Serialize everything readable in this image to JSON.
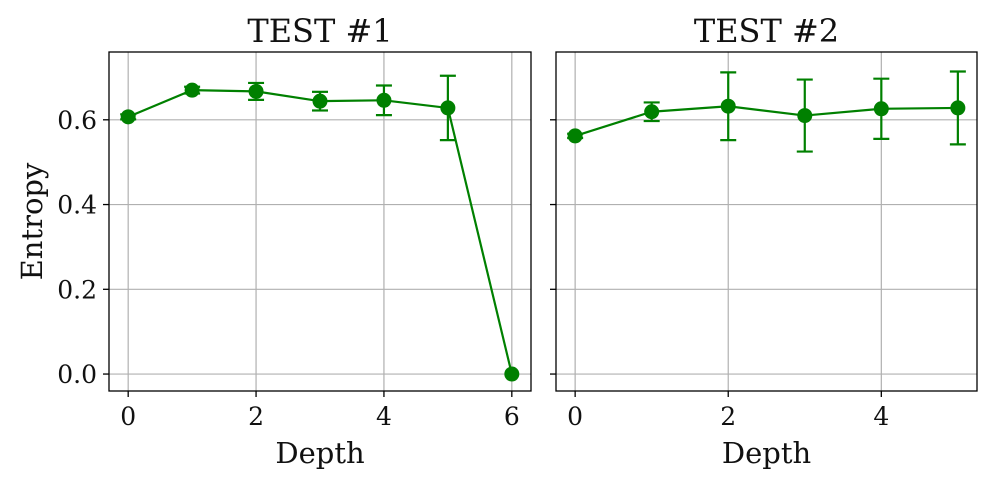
{
  "chart_data": [
    {
      "type": "line",
      "title": "TEST #1",
      "xlabel": "Depth",
      "ylabel": "Entropy",
      "xlim": [
        -0.3,
        6.3
      ],
      "ylim": [
        -0.04,
        0.76
      ],
      "xticks": [
        0,
        2,
        4,
        6
      ],
      "xtick_labels": [
        "0",
        "2",
        "4",
        "6"
      ],
      "yticks": [
        0.0,
        0.2,
        0.4,
        0.6
      ],
      "ytick_labels": [
        "0.0",
        "0.2",
        "0.4",
        "0.6"
      ],
      "grid": true,
      "color": "#008000",
      "series": [
        {
          "x": [
            0,
            1,
            2,
            3,
            4,
            5,
            6
          ],
          "y": [
            0.607,
            0.67,
            0.667,
            0.644,
            0.646,
            0.628,
            0.0
          ],
          "yerr": [
            0.006,
            0.008,
            0.02,
            0.022,
            0.035,
            0.076,
            0.0
          ]
        }
      ]
    },
    {
      "type": "line",
      "title": "TEST #2",
      "xlabel": "Depth",
      "ylabel": "",
      "xlim": [
        -0.25,
        5.25
      ],
      "ylim": [
        -0.04,
        0.76
      ],
      "xticks": [
        0,
        2,
        4
      ],
      "xtick_labels": [
        "0",
        "2",
        "4"
      ],
      "yticks": [
        0.0,
        0.2,
        0.4,
        0.6
      ],
      "ytick_labels": [
        "",
        "",
        "",
        ""
      ],
      "grid": true,
      "color": "#008000",
      "series": [
        {
          "x": [
            0,
            1,
            2,
            3,
            4,
            5
          ],
          "y": [
            0.562,
            0.619,
            0.632,
            0.61,
            0.626,
            0.628
          ],
          "yerr": [
            0.005,
            0.022,
            0.08,
            0.085,
            0.071,
            0.086
          ]
        }
      ]
    }
  ]
}
